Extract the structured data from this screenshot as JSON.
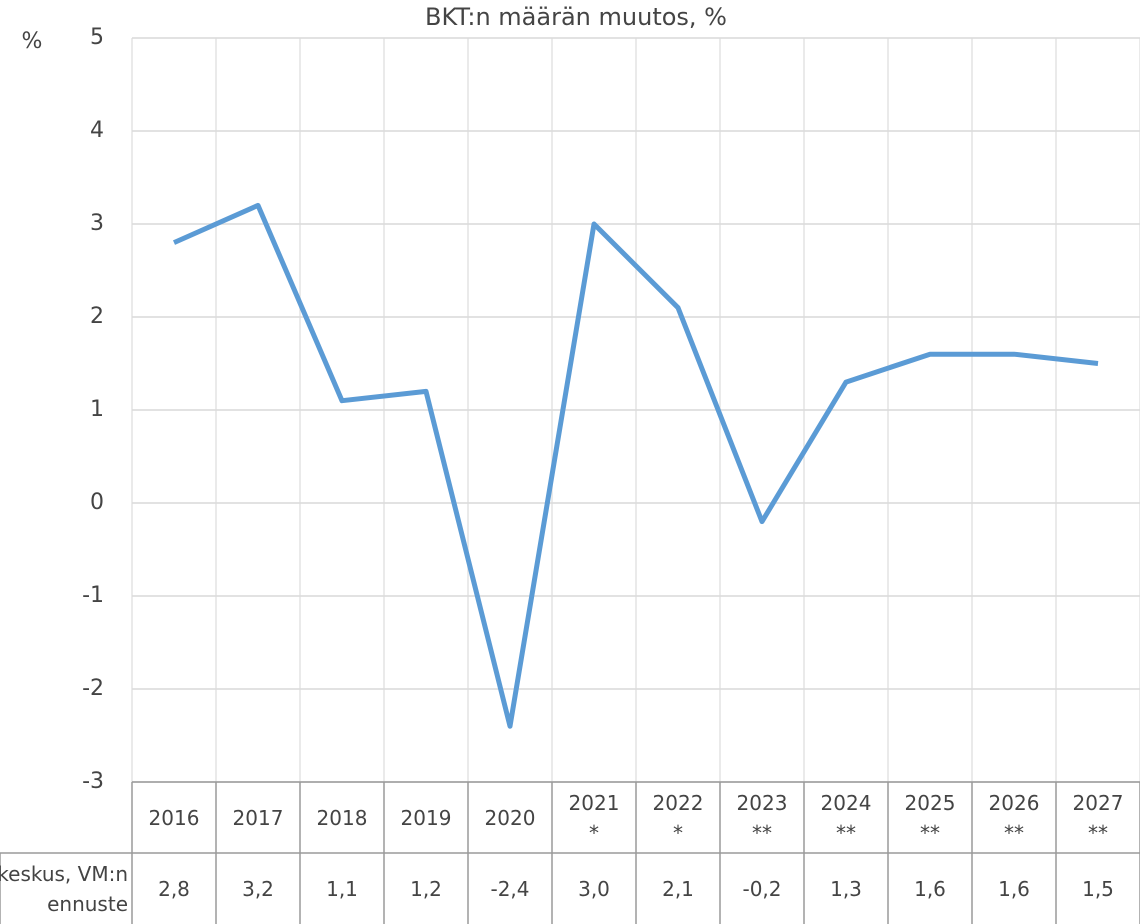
{
  "chart_data": {
    "type": "line",
    "title": "BKT:n määrän muutos, %",
    "y_label": "%",
    "categories": [
      "2016",
      "2017",
      "2018",
      "2019",
      "2020",
      "2021\n*",
      "2022\n*",
      "2023\n**",
      "2024\n**",
      "2025\n**",
      "2026\n**",
      "2027\n**"
    ],
    "series": [
      {
        "name": "Tilastokeskus, VM:n ennuste",
        "color": "#5b9bd5",
        "values": [
          2.8,
          3.2,
          1.1,
          1.2,
          -2.4,
          3.0,
          2.1,
          -0.2,
          1.3,
          1.6,
          1.6,
          1.5
        ],
        "value_labels": [
          "2,8",
          "3,2",
          "1,1",
          "1,2",
          "-2,4",
          "3,0",
          "2,1",
          "-0,2",
          "1,3",
          "1,6",
          "1,6",
          "1,5"
        ]
      }
    ],
    "ylim": [
      -3,
      5
    ],
    "yticks": [
      -3,
      -2,
      -1,
      0,
      1,
      2,
      3,
      4,
      5
    ],
    "grid": true
  }
}
